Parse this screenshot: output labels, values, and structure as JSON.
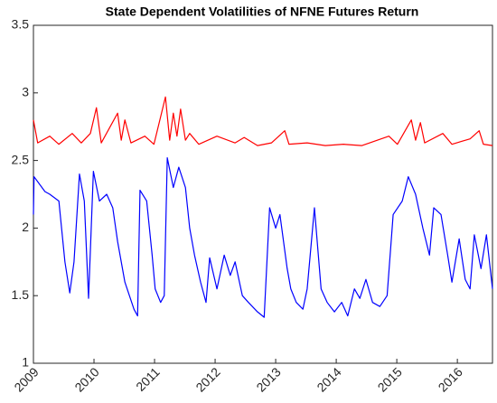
{
  "chart_data": {
    "type": "line",
    "title": "State Dependent Volatilities of NFNE Futures Return",
    "xlim": [
      2009,
      2016.58
    ],
    "xticks": [
      2009,
      2010,
      2011,
      2012,
      2013,
      2014,
      2015,
      2016
    ],
    "ylim": [
      1,
      3.5
    ],
    "yticks": [
      1,
      1.5,
      2,
      2.5,
      3,
      3.5
    ],
    "grid": false,
    "series": [
      {
        "color": "#ff0000",
        "x": [
          2009.0,
          2009.07,
          2009.27,
          2009.42,
          2009.64,
          2009.79,
          2009.94,
          2010.04,
          2010.12,
          2010.39,
          2010.45,
          2010.51,
          2010.61,
          2010.84,
          2010.99,
          2011.18,
          2011.25,
          2011.31,
          2011.37,
          2011.43,
          2011.51,
          2011.58,
          2011.73,
          2012.03,
          2012.33,
          2012.48,
          2012.7,
          2012.93,
          2013.15,
          2013.22,
          2013.52,
          2013.82,
          2014.12,
          2014.42,
          2014.87,
          2015.01,
          2015.24,
          2015.31,
          2015.39,
          2015.46,
          2015.76,
          2015.91,
          2016.21,
          2016.36,
          2016.43,
          2016.58
        ],
        "values": [
          2.8,
          2.63,
          2.68,
          2.62,
          2.7,
          2.63,
          2.7,
          2.89,
          2.63,
          2.85,
          2.65,
          2.8,
          2.63,
          2.68,
          2.62,
          2.97,
          2.65,
          2.85,
          2.68,
          2.88,
          2.65,
          2.7,
          2.62,
          2.68,
          2.63,
          2.67,
          2.61,
          2.63,
          2.72,
          2.62,
          2.63,
          2.61,
          2.62,
          2.61,
          2.68,
          2.62,
          2.8,
          2.65,
          2.78,
          2.63,
          2.7,
          2.62,
          2.66,
          2.72,
          2.62,
          2.61
        ]
      },
      {
        "color": "#0000ff",
        "x": [
          2009.0,
          2009.01,
          2009.19,
          2009.27,
          2009.42,
          2009.52,
          2009.6,
          2009.67,
          2009.76,
          2009.84,
          2009.91,
          2009.99,
          2010.09,
          2010.21,
          2010.31,
          2010.39,
          2010.51,
          2010.66,
          2010.72,
          2010.76,
          2010.87,
          2010.96,
          2011.01,
          2011.1,
          2011.16,
          2011.21,
          2011.31,
          2011.4,
          2011.51,
          2011.58,
          2011.66,
          2011.76,
          2011.85,
          2011.91,
          2012.03,
          2012.15,
          2012.25,
          2012.33,
          2012.45,
          2012.55,
          2012.7,
          2012.81,
          2012.9,
          2013.0,
          2013.07,
          2013.19,
          2013.25,
          2013.34,
          2013.45,
          2013.52,
          2013.64,
          2013.75,
          2013.85,
          2013.97,
          2014.09,
          2014.19,
          2014.3,
          2014.39,
          2014.49,
          2014.6,
          2014.72,
          2014.84,
          2014.94,
          2015.09,
          2015.19,
          2015.31,
          2015.43,
          2015.54,
          2015.61,
          2015.73,
          2015.84,
          2015.91,
          2016.03,
          2016.13,
          2016.21,
          2016.28,
          2016.39,
          2016.48,
          2016.58
        ],
        "values": [
          2.1,
          2.38,
          2.27,
          2.25,
          2.2,
          1.75,
          1.52,
          1.75,
          2.4,
          2.2,
          1.48,
          2.42,
          2.2,
          2.25,
          2.15,
          1.9,
          1.6,
          1.4,
          1.35,
          2.28,
          2.2,
          1.8,
          1.55,
          1.45,
          1.5,
          2.52,
          2.3,
          2.45,
          2.3,
          2.0,
          1.8,
          1.6,
          1.45,
          1.78,
          1.55,
          1.8,
          1.65,
          1.75,
          1.5,
          1.45,
          1.38,
          1.34,
          2.15,
          2.0,
          2.1,
          1.7,
          1.55,
          1.45,
          1.4,
          1.55,
          2.15,
          1.55,
          1.45,
          1.38,
          1.45,
          1.35,
          1.55,
          1.48,
          1.62,
          1.45,
          1.42,
          1.5,
          2.1,
          2.2,
          2.38,
          2.25,
          2.0,
          1.8,
          2.15,
          2.1,
          1.8,
          1.6,
          1.92,
          1.62,
          1.55,
          1.95,
          1.7,
          1.95,
          1.55
        ]
      }
    ]
  }
}
